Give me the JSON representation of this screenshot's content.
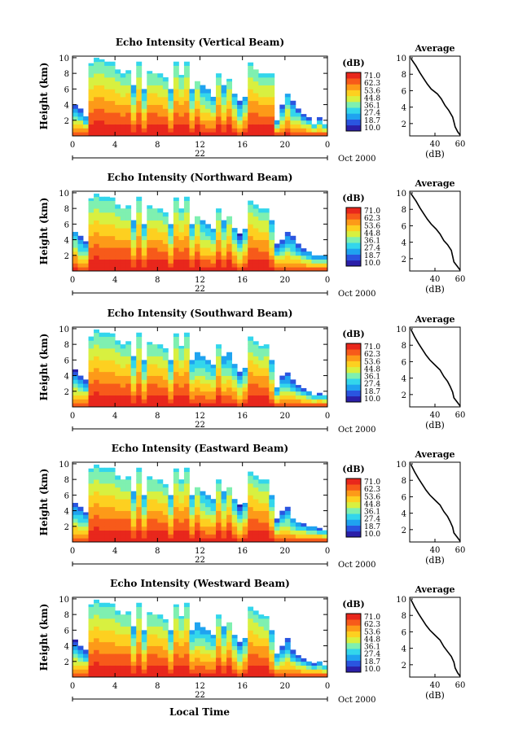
{
  "xlabel": "Local Time",
  "colorbar": {
    "unit": "(dB)",
    "ticks": [
      "71.0",
      "62.3",
      "53.6",
      "44.8",
      "36.1",
      "27.4",
      "18.7",
      "10.0"
    ],
    "range": [
      10.0,
      71.0
    ],
    "colors": [
      "#2b1fa8",
      "#2a55e0",
      "#1fa3f0",
      "#33d6ec",
      "#7ff0b0",
      "#d8f040",
      "#fdd020",
      "#fd9a18",
      "#f75a1a",
      "#e8271c"
    ]
  },
  "chart_data": [
    {
      "type": "heatmap",
      "title": "Echo Intensity (Vertical Beam)",
      "ylabel": "Height (km)",
      "xlim": [
        0,
        24
      ],
      "ylim": [
        0,
        10.2
      ],
      "x_ticks": [
        "0",
        "4",
        "8",
        "12",
        "16",
        "20",
        "0"
      ],
      "y_ticks": [
        "2",
        "4",
        "6",
        "8",
        "10"
      ],
      "date_label": "22",
      "date_suffix": "Oct 2000",
      "cloud_top_km": [
        4.2,
        3.6,
        2.7,
        9.3,
        10.0,
        9.8,
        9.6,
        9.5,
        8.5,
        8.0,
        8.4,
        6.5,
        9.7,
        6.0,
        8.3,
        8.2,
        8.0,
        7.5,
        6.0,
        9.5,
        7.8,
        9.7,
        6.0,
        7.2,
        6.5,
        6.0,
        5.2,
        8.0,
        6.5,
        7.3,
        5.4,
        4.5,
        5.2,
        9.4,
        8.7,
        8.0,
        8.0,
        8.0,
        2.2,
        4.2,
        5.4,
        4.5,
        3.7,
        2.8,
        2.4,
        1.5,
        2.4,
        1.5
      ],
      "profile": {
        "title": "Average",
        "xlabel": "(dB)",
        "x_ticks": [
          "40",
          "60"
        ],
        "y_ticks": [
          "2",
          "4",
          "6",
          "8",
          "10"
        ],
        "xlim": [
          20,
          60
        ],
        "ylim": [
          0.5,
          10.2
        ],
        "x": [
          60,
          58,
          56,
          55,
          54,
          51,
          48,
          45,
          42,
          37,
          34,
          31,
          28,
          25,
          21
        ],
        "y": [
          0.6,
          1.0,
          1.6,
          2.2,
          2.8,
          3.6,
          4.2,
          5.0,
          5.6,
          6.2,
          6.8,
          7.5,
          8.2,
          9.0,
          9.9
        ]
      }
    },
    {
      "type": "heatmap",
      "title": "Echo Intensity (Northward Beam)",
      "ylabel": "Height (km)",
      "xlim": [
        0,
        24
      ],
      "ylim": [
        0,
        10.2
      ],
      "x_ticks": [
        "0",
        "4",
        "8",
        "12",
        "16",
        "20",
        "0"
      ],
      "y_ticks": [
        "2",
        "4",
        "6",
        "8",
        "10"
      ],
      "date_label": "22",
      "date_suffix": "Oct 2000",
      "cloud_top_km": [
        5.2,
        4.5,
        3.8,
        9.3,
        9.9,
        9.7,
        9.6,
        9.4,
        8.6,
        8.2,
        8.4,
        6.5,
        9.6,
        6.2,
        8.4,
        8.2,
        8.0,
        7.5,
        6.0,
        9.4,
        8.0,
        9.7,
        6.2,
        7.2,
        6.6,
        6.2,
        5.4,
        8.0,
        6.5,
        7.2,
        5.6,
        4.8,
        5.4,
        9.2,
        8.6,
        8.0,
        8.0,
        6.6,
        3.6,
        4.2,
        5.0,
        4.5,
        3.6,
        2.9,
        2.6,
        2.1,
        2.2,
        2.0
      ],
      "profile": {
        "title": "Average",
        "xlabel": "(dB)",
        "x_ticks": [
          "40",
          "60"
        ],
        "y_ticks": [
          "2",
          "4",
          "6",
          "8",
          "10"
        ],
        "xlim": [
          20,
          60
        ],
        "ylim": [
          0.5,
          10.2
        ],
        "x": [
          60,
          58,
          55,
          54,
          53,
          50,
          47,
          44,
          41,
          37,
          34,
          31,
          28,
          25,
          21
        ],
        "y": [
          0.6,
          1.0,
          1.6,
          2.3,
          3.0,
          3.7,
          4.2,
          5.0,
          5.6,
          6.2,
          6.8,
          7.5,
          8.2,
          9.0,
          9.9
        ]
      }
    },
    {
      "type": "heatmap",
      "title": "Echo Intensity (Southward Beam)",
      "ylabel": "Height (km)",
      "xlim": [
        0,
        24
      ],
      "ylim": [
        0,
        10.2
      ],
      "x_ticks": [
        "0",
        "4",
        "8",
        "12",
        "16",
        "20",
        "0"
      ],
      "y_ticks": [
        "2",
        "4",
        "6",
        "8",
        "10"
      ],
      "date_label": "22",
      "date_suffix": "Oct 2000",
      "cloud_top_km": [
        4.8,
        4.0,
        3.6,
        9.2,
        9.9,
        9.6,
        9.5,
        9.4,
        8.5,
        8.0,
        8.4,
        6.6,
        9.6,
        6.0,
        8.3,
        8.2,
        8.0,
        7.5,
        6.0,
        9.4,
        7.8,
        9.7,
        6.0,
        7.0,
        6.6,
        6.0,
        5.4,
        8.0,
        6.5,
        7.0,
        5.5,
        4.7,
        5.2,
        9.0,
        8.4,
        7.8,
        8.0,
        6.0,
        2.5,
        4.0,
        4.4,
        3.5,
        2.8,
        2.4,
        2.0,
        1.6,
        1.8,
        1.5
      ],
      "profile": {
        "title": "Average",
        "xlabel": "(dB)",
        "x_ticks": [
          "40",
          "60"
        ],
        "y_ticks": [
          "2",
          "4",
          "6",
          "8",
          "10"
        ],
        "xlim": [
          20,
          60
        ],
        "ylim": [
          0.5,
          10.2
        ],
        "x": [
          60,
          58,
          55,
          54,
          52,
          50,
          47,
          44,
          40,
          36,
          33,
          30,
          27,
          24,
          21
        ],
        "y": [
          0.6,
          1.0,
          1.6,
          2.3,
          3.0,
          3.6,
          4.2,
          5.0,
          5.6,
          6.2,
          6.8,
          7.5,
          8.2,
          9.0,
          9.9
        ]
      }
    },
    {
      "type": "heatmap",
      "title": "Echo Intensity (Eastward Beam)",
      "ylabel": "Height (km)",
      "xlim": [
        0,
        24
      ],
      "ylim": [
        0,
        10.2
      ],
      "x_ticks": [
        "0",
        "4",
        "8",
        "12",
        "16",
        "20",
        "0"
      ],
      "y_ticks": [
        "2",
        "4",
        "6",
        "8",
        "10"
      ],
      "date_label": "22",
      "date_suffix": "Oct 2000",
      "cloud_top_km": [
        5.0,
        4.5,
        3.8,
        9.4,
        9.9,
        9.7,
        9.5,
        9.5,
        8.6,
        8.2,
        8.4,
        6.5,
        9.7,
        6.1,
        8.4,
        8.2,
        8.0,
        7.4,
        6.0,
        9.4,
        8.0,
        9.7,
        6.0,
        7.2,
        6.6,
        6.0,
        5.5,
        8.0,
        6.5,
        7.2,
        5.5,
        4.8,
        5.2,
        9.2,
        8.6,
        8.0,
        8.0,
        6.2,
        3.0,
        4.0,
        4.6,
        3.2,
        2.6,
        2.4,
        2.0,
        2.0,
        1.8,
        1.6
      ],
      "profile": {
        "title": "Average",
        "xlabel": "(dB)",
        "x_ticks": [
          "40",
          "60"
        ],
        "y_ticks": [
          "2",
          "4",
          "6",
          "8",
          "10"
        ],
        "xlim": [
          20,
          60
        ],
        "ylim": [
          0.5,
          10.2
        ],
        "x": [
          60,
          58,
          55,
          54,
          52,
          50,
          47,
          44,
          40,
          36,
          33,
          30,
          27,
          24,
          21
        ],
        "y": [
          0.6,
          1.0,
          1.6,
          2.3,
          3.0,
          3.6,
          4.2,
          5.0,
          5.6,
          6.2,
          6.8,
          7.5,
          8.2,
          9.0,
          9.9
        ]
      }
    },
    {
      "type": "heatmap",
      "title": "Echo Intensity (Westward Beam)",
      "ylabel": "Height (km)",
      "xlim": [
        0,
        24
      ],
      "ylim": [
        0,
        10.2
      ],
      "x_ticks": [
        "0",
        "4",
        "8",
        "12",
        "16",
        "20",
        "0"
      ],
      "y_ticks": [
        "2",
        "4",
        "6",
        "8",
        "10"
      ],
      "date_label": "22",
      "date_suffix": "Oct 2000",
      "cloud_top_km": [
        4.8,
        4.2,
        3.6,
        9.3,
        9.9,
        9.7,
        9.5,
        9.4,
        8.6,
        8.2,
        8.4,
        6.5,
        9.6,
        6.0,
        8.3,
        8.2,
        8.0,
        7.4,
        6.0,
        9.3,
        7.8,
        9.6,
        6.0,
        7.0,
        6.4,
        6.0,
        5.4,
        8.0,
        6.5,
        7.2,
        5.4,
        4.6,
        5.2,
        9.2,
        8.6,
        8.0,
        7.8,
        6.0,
        3.2,
        4.2,
        5.0,
        3.6,
        2.8,
        2.4,
        2.2,
        1.8,
        2.0,
        1.6
      ],
      "profile": {
        "title": "Average",
        "xlabel": "(dB)",
        "x_ticks": [
          "40",
          "60"
        ],
        "y_ticks": [
          "2",
          "4",
          "6",
          "8",
          "10"
        ],
        "xlim": [
          20,
          60
        ],
        "ylim": [
          0.5,
          10.2
        ],
        "x": [
          60,
          58,
          56,
          55,
          53,
          50,
          47,
          44,
          40,
          36,
          33,
          30,
          27,
          24,
          21
        ],
        "y": [
          0.6,
          1.0,
          1.6,
          2.3,
          3.0,
          3.6,
          4.2,
          5.0,
          5.6,
          6.2,
          6.8,
          7.5,
          8.2,
          9.0,
          9.9
        ]
      }
    }
  ]
}
